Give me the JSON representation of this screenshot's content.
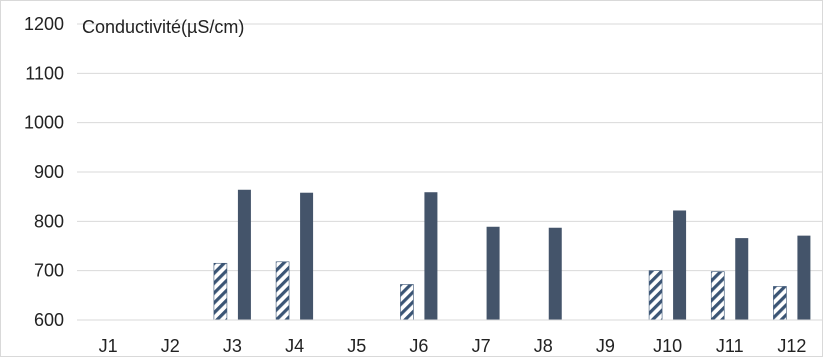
{
  "chart_data": {
    "type": "bar",
    "title": "Conductivité(µS/cm)",
    "xlabel": "",
    "ylabel": "",
    "categories": [
      "J1",
      "J2",
      "J3",
      "J4",
      "J5",
      "J6",
      "J7",
      "J8",
      "J9",
      "J10",
      "J11",
      "J12"
    ],
    "yticks": [
      "600",
      "700",
      "800",
      "900",
      "1000",
      "1100",
      "1200"
    ],
    "ylim": [
      600,
      1200
    ],
    "grid": true,
    "legend": "none",
    "series": [
      {
        "pattern": "hatched",
        "color": "#3b5575",
        "values": [
          null,
          null,
          715,
          718,
          null,
          672,
          null,
          null,
          null,
          700,
          698,
          668
        ]
      },
      {
        "pattern": "solid",
        "color": "#44546a",
        "values": [
          null,
          null,
          864,
          858,
          null,
          859,
          789,
          787,
          null,
          822,
          766,
          771
        ]
      }
    ]
  }
}
